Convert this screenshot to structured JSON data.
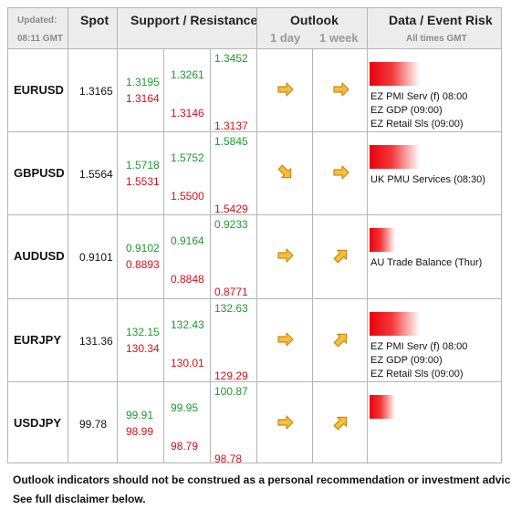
{
  "header": {
    "updated_label": "Updated:",
    "updated_time": "08:11 GMT",
    "spot": "Spot",
    "support_resistance": "Support / Resistance",
    "outlook": "Outlook",
    "outlook_1day": "1 day",
    "outlook_1week": "1 week",
    "event_risk": "Data / Event Risk",
    "all_times": "All times GMT"
  },
  "rows": [
    {
      "pair": "EURUSD",
      "spot": "1.3165",
      "levels": {
        "s1_top": "1.3195",
        "s1_bot": "1.3164",
        "s2_top": "1.3261",
        "s2_bot": "1.3146",
        "s3_top": "1.3452",
        "s3_bot": "1.3137"
      },
      "outlook_1day": "right-arrow-icon",
      "outlook_1week": "right-arrow-icon",
      "risk_level": 0.55,
      "events": [
        "EZ PMI Serv (f) 08:00",
        "EZ GDP (09:00)",
        "EZ Retail Sls (09:00)"
      ]
    },
    {
      "pair": "GBPUSD",
      "spot": "1.5564",
      "levels": {
        "s1_top": "1.5718",
        "s1_bot": "1.5531",
        "s2_top": "1.5752",
        "s2_bot": "1.5500",
        "s3_top": "1.5845",
        "s3_bot": "1.5429"
      },
      "outlook_1day": "down-right-arrow-icon",
      "outlook_1week": "right-arrow-icon",
      "risk_level": 0.55,
      "events": [
        "UK PMU Services (08:30)"
      ]
    },
    {
      "pair": "AUDUSD",
      "spot": "0.9101",
      "levels": {
        "s1_top": "0.9102",
        "s1_bot": "0.8893",
        "s2_top": "0.9164",
        "s2_bot": "0.8848",
        "s3_top": "0.9233",
        "s3_bot": "0.8771"
      },
      "outlook_1day": "right-arrow-icon",
      "outlook_1week": "up-right-arrow-icon",
      "risk_level": 0.28,
      "events": [
        "AU Trade Balance (Thur)"
      ]
    },
    {
      "pair": "EURJPY",
      "spot": "131.36",
      "levels": {
        "s1_top": "132.15",
        "s1_bot": "130.34",
        "s2_top": "132.43",
        "s2_bot": "130.01",
        "s3_top": "132.63",
        "s3_bot": "129.29"
      },
      "outlook_1day": "right-arrow-icon",
      "outlook_1week": "up-right-arrow-icon",
      "risk_level": 0.55,
      "events": [
        "EZ PMI Serv (f) 08:00",
        "EZ GDP (09:00)",
        "EZ Retail Sls (09:00)"
      ]
    },
    {
      "pair": "USDJPY",
      "spot": "99.78",
      "levels": {
        "s1_top": "99.91",
        "s1_bot": "98.99",
        "s2_top": "99.95",
        "s2_bot": "98.79",
        "s3_top": "100.87",
        "s3_bot": "98.78"
      },
      "outlook_1day": "right-arrow-icon",
      "outlook_1week": "up-right-arrow-icon",
      "risk_level": 0.28,
      "events": []
    }
  ],
  "colors": {
    "support": "#1f9a2f",
    "resistance": "#d4101a",
    "arrow_fill": "#f6be3c",
    "arrow_stroke": "#c78a14"
  },
  "footer": {
    "line1": "Outlook indicators should not be construed as a personal recommendation or investment advice.",
    "line2": "See full disclaimer below."
  }
}
